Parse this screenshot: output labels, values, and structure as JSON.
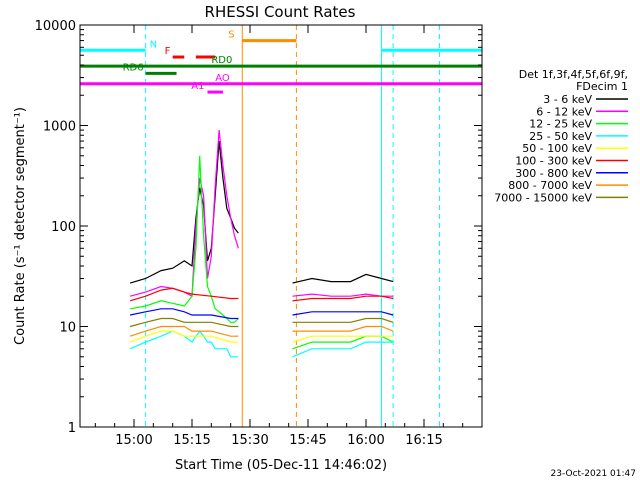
{
  "chart_data": {
    "type": "line",
    "title": "RHESSI Count Rates",
    "xlabel": "Start Time (05-Dec-11 14:46:02)",
    "ylabel": "Count Rate (s⁻¹ detector segment⁻¹)",
    "yscale": "log",
    "ylim": [
      1,
      10000
    ],
    "xlim": [
      "14:46:02",
      "16:30:00"
    ],
    "x_ticks": [
      "15:00",
      "15:15",
      "15:30",
      "15:45",
      "16:00",
      "16:15"
    ],
    "y_ticks": [
      "1",
      "10",
      "100",
      "1000",
      "10000"
    ],
    "footer_date": "23-Oct-2021 01:47",
    "legend": {
      "position": "right",
      "title_lines": [
        "Det 1f,3f,4f,5f,6f,9f,",
        "FDecim 1"
      ],
      "entries": [
        {
          "label": "3 - 6 keV",
          "color": "#000000"
        },
        {
          "label": "6 - 12 keV",
          "color": "#ff00ff"
        },
        {
          "label": "12 - 25 keV",
          "color": "#00ff00"
        },
        {
          "label": "25 - 50 keV",
          "color": "#00ffff"
        },
        {
          "label": "50 - 100 keV",
          "color": "#ffff00"
        },
        {
          "label": "100 - 300 keV",
          "color": "#ff0000"
        },
        {
          "label": "300 - 800 keV",
          "color": "#0000ff"
        },
        {
          "label": "800 - 7000 keV",
          "color": "#ff8c00"
        },
        {
          "label": "7000 - 15000 keV",
          "color": "#808000"
        }
      ]
    },
    "series": [
      {
        "name": "3 - 6 keV",
        "color": "#000000",
        "segments": [
          {
            "x": [
              "14:59:00",
              "15:03:00",
              "15:07:00",
              "15:10:00",
              "15:13:00",
              "15:15:00",
              "15:16:00",
              "15:17:00",
              "15:18:00",
              "15:19:00",
              "15:20:00",
              "15:21:00",
              "15:22:00",
              "15:23:00",
              "15:24:00",
              "15:25:00",
              "15:26:00",
              "15:27:00"
            ],
            "y": [
              27,
              30,
              36,
              38,
              45,
              40,
              120,
              240,
              160,
              45,
              60,
              200,
              700,
              300,
              150,
              120,
              95,
              85
            ]
          },
          {
            "x": [
              "15:41:00",
              "15:46:00",
              "15:51:00",
              "15:56:00",
              "16:00:00",
              "16:04:00",
              "16:07:00"
            ],
            "y": [
              27,
              30,
              28,
              28,
              33,
              30,
              28
            ]
          }
        ]
      },
      {
        "name": "6 - 12 keV",
        "color": "#ff00ff",
        "segments": [
          {
            "x": [
              "14:59:00",
              "15:03:00",
              "15:07:00",
              "15:10:00",
              "15:13:00",
              "15:15:00",
              "15:16:00",
              "15:17:00",
              "15:18:00",
              "15:19:00",
              "15:20:00",
              "15:21:00",
              "15:22:00",
              "15:23:00",
              "15:24:00",
              "15:25:00",
              "15:26:00",
              "15:27:00"
            ],
            "y": [
              20,
              22,
              25,
              24,
              22,
              20,
              100,
              300,
              200,
              30,
              50,
              250,
              900,
              400,
              200,
              120,
              80,
              60
            ]
          },
          {
            "x": [
              "15:41:00",
              "15:46:00",
              "15:51:00",
              "15:56:00",
              "16:00:00",
              "16:04:00",
              "16:07:00"
            ],
            "y": [
              20,
              21,
              20,
              20,
              21,
              20,
              20
            ]
          }
        ]
      },
      {
        "name": "12 - 25 keV",
        "color": "#00ff00",
        "segments": [
          {
            "x": [
              "14:59:00",
              "15:03:00",
              "15:07:00",
              "15:10:00",
              "15:13:00",
              "15:15:00",
              "15:16:00",
              "15:17:00",
              "15:18:00",
              "15:19:00",
              "15:20:00",
              "15:21:00",
              "15:22:00",
              "15:23:00",
              "15:24:00",
              "15:25:00",
              "15:26:00",
              "15:27:00"
            ],
            "y": [
              15,
              16,
              18,
              17,
              16,
              20,
              60,
              500,
              80,
              25,
              20,
              15,
              14,
              13,
              12,
              11,
              11,
              12
            ]
          },
          {
            "x": [
              "15:41:00",
              "15:46:00",
              "15:51:00",
              "15:56:00",
              "16:00:00",
              "16:04:00",
              "16:07:00"
            ],
            "y": [
              6,
              7,
              7,
              7,
              8,
              8,
              7
            ]
          }
        ]
      },
      {
        "name": "25 - 50 keV",
        "color": "#00ffff",
        "segments": [
          {
            "x": [
              "14:59:00",
              "15:03:00",
              "15:07:00",
              "15:10:00",
              "15:13:00",
              "15:15:00",
              "15:16:00",
              "15:17:00",
              "15:18:00",
              "15:19:00",
              "15:20:00",
              "15:21:00",
              "15:22:00",
              "15:23:00",
              "15:24:00",
              "15:25:00",
              "15:26:00",
              "15:27:00"
            ],
            "y": [
              6,
              7,
              8,
              9,
              8,
              7,
              8,
              9,
              8,
              7,
              7,
              6,
              6,
              6,
              6,
              5,
              5,
              5
            ]
          },
          {
            "x": [
              "15:41:00",
              "15:46:00",
              "15:51:00",
              "15:56:00",
              "16:00:00",
              "16:04:00",
              "16:07:00"
            ],
            "y": [
              5,
              6,
              6,
              6,
              7,
              7,
              7
            ]
          }
        ]
      },
      {
        "name": "50 - 100 keV",
        "color": "#ffff00",
        "segments": [
          {
            "x": [
              "14:59:00",
              "15:03:00",
              "15:07:00",
              "15:10:00",
              "15:13:00",
              "15:15:00",
              "15:20:00",
              "15:25:00",
              "15:27:00"
            ],
            "y": [
              7,
              8,
              9,
              9,
              8,
              8,
              8,
              7,
              7
            ]
          },
          {
            "x": [
              "15:41:00",
              "15:46:00",
              "15:51:00",
              "15:56:00",
              "16:00:00",
              "16:04:00",
              "16:07:00"
            ],
            "y": [
              7,
              8,
              8,
              8,
              8,
              8,
              8
            ]
          }
        ]
      },
      {
        "name": "100 - 300 keV",
        "color": "#ff0000",
        "segments": [
          {
            "x": [
              "14:59:00",
              "15:03:00",
              "15:07:00",
              "15:10:00",
              "15:13:00",
              "15:15:00",
              "15:20:00",
              "15:25:00",
              "15:27:00"
            ],
            "y": [
              18,
              20,
              23,
              24,
              22,
              21,
              20,
              19,
              19
            ]
          },
          {
            "x": [
              "15:41:00",
              "15:46:00",
              "15:51:00",
              "15:56:00",
              "16:00:00",
              "16:04:00",
              "16:07:00"
            ],
            "y": [
              18,
              19,
              19,
              19,
              20,
              20,
              19
            ]
          }
        ]
      },
      {
        "name": "300 - 800 keV",
        "color": "#0000ff",
        "segments": [
          {
            "x": [
              "14:59:00",
              "15:03:00",
              "15:07:00",
              "15:10:00",
              "15:13:00",
              "15:15:00",
              "15:20:00",
              "15:25:00",
              "15:27:00"
            ],
            "y": [
              13,
              14,
              15,
              15,
              14,
              13,
              13,
              12,
              12
            ]
          },
          {
            "x": [
              "15:41:00",
              "15:46:00",
              "15:51:00",
              "15:56:00",
              "16:00:00",
              "16:04:00",
              "16:07:00"
            ],
            "y": [
              13,
              14,
              14,
              14,
              14,
              14,
              13
            ]
          }
        ]
      },
      {
        "name": "800 - 7000 keV",
        "color": "#ff8c00",
        "segments": [
          {
            "x": [
              "14:59:00",
              "15:03:00",
              "15:07:00",
              "15:10:00",
              "15:13:00",
              "15:15:00",
              "15:20:00",
              "15:25:00",
              "15:27:00"
            ],
            "y": [
              8,
              9,
              10,
              10,
              10,
              9,
              9,
              8,
              8
            ]
          },
          {
            "x": [
              "15:41:00",
              "15:46:00",
              "15:51:00",
              "15:56:00",
              "16:00:00",
              "16:04:00",
              "16:07:00"
            ],
            "y": [
              9,
              9,
              9,
              9,
              10,
              10,
              9
            ]
          }
        ]
      },
      {
        "name": "7000 - 15000 keV",
        "color": "#808000",
        "segments": [
          {
            "x": [
              "14:59:00",
              "15:03:00",
              "15:07:00",
              "15:10:00",
              "15:13:00",
              "15:15:00",
              "15:20:00",
              "15:25:00",
              "15:27:00"
            ],
            "y": [
              10,
              11,
              12,
              12,
              11,
              11,
              11,
              10,
              10
            ]
          },
          {
            "x": [
              "15:41:00",
              "15:46:00",
              "15:51:00",
              "15:56:00",
              "16:00:00",
              "16:04:00",
              "16:07:00"
            ],
            "y": [
              11,
              11,
              11,
              11,
              12,
              12,
              11
            ]
          }
        ]
      }
    ],
    "vlines": [
      {
        "x": "14:46:02",
        "color": "#00ffff",
        "style": "solid"
      },
      {
        "x": "15:03:00",
        "color": "#00ffff",
        "style": "dashed"
      },
      {
        "x": "15:28:00",
        "color": "#ff8c00",
        "style": "solid"
      },
      {
        "x": "15:42:00",
        "color": "#ff8c00",
        "style": "dashed"
      },
      {
        "x": "16:04:00",
        "color": "#00ffff",
        "style": "solid"
      },
      {
        "x": "16:07:00",
        "color": "#00ffff",
        "style": "dashed"
      },
      {
        "x": "16:19:00",
        "color": "#00ffff",
        "style": "dashed"
      }
    ],
    "flag_bars": [
      {
        "label": "N",
        "color": "#00ffff",
        "x0": "14:46:02",
        "x1": "15:03:00",
        "y": 5600
      },
      {
        "label": "",
        "color": "#00ffff",
        "x0": "16:04:00",
        "x1": "16:30:00",
        "y": 5600
      },
      {
        "label": "F",
        "color": "#ff0000",
        "x0": "15:10:00",
        "x1": "15:13:00",
        "y": 4800
      },
      {
        "label": "",
        "color": "#ff0000",
        "x0": "15:16:00",
        "x1": "15:21:00",
        "y": 4800
      },
      {
        "label": "S",
        "color": "#ff8c00",
        "x0": "15:28:00",
        "x1": "15:42:00",
        "y": 7000
      },
      {
        "label": "RD0",
        "color": "#008000",
        "x0": "14:46:02",
        "x1": "16:30:00",
        "y": 3900
      },
      {
        "label": "RD6",
        "color": "#008000",
        "x0": "15:03:00",
        "x1": "15:11:00",
        "y": 3300
      },
      {
        "label": "AO",
        "color": "#ff00ff",
        "x0": "14:46:02",
        "x1": "16:30:00",
        "y": 2600
      },
      {
        "label": "A1",
        "color": "#ff00ff",
        "x0": "15:19:00",
        "x1": "15:23:00",
        "y": 2150
      }
    ]
  }
}
